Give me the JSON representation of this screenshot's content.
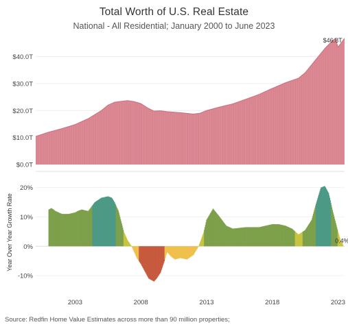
{
  "chart_data": [
    {
      "type": "area",
      "title": "Total Worth of U.S. Real Estate",
      "subtitle": "National - All Residential; January 2000 to June 2023",
      "xlabel": "",
      "ylabel": "",
      "x_range": [
        2000.0,
        2023.5
      ],
      "ylim": [
        0,
        47
      ],
      "y_ticks": [
        0,
        10,
        20,
        30,
        40
      ],
      "y_tick_labels": [
        "$0.0T",
        "$10.0T",
        "$20.0T",
        "$30.0T",
        "$40.0T"
      ],
      "color": "#de8c97",
      "series": [
        {
          "x": [
            2000.0,
            2001.0,
            2002.0,
            2003.0,
            2004.0,
            2005.0,
            2005.5,
            2006.0,
            2006.5,
            2007.0,
            2007.5,
            2008.0,
            2008.5,
            2009.0,
            2009.5,
            2010.0,
            2011.0,
            2012.0,
            2012.5,
            2013.0,
            2014.0,
            2015.0,
            2016.0,
            2017.0,
            2018.0,
            2019.0,
            2020.0,
            2020.5,
            2021.0,
            2021.5,
            2022.0,
            2022.5,
            2022.8,
            2023.0,
            2023.5
          ],
          "values": [
            10.4,
            12.0,
            13.3,
            14.8,
            17.0,
            20.0,
            22.0,
            23.1,
            23.4,
            23.7,
            23.3,
            22.6,
            21.0,
            19.8,
            19.9,
            19.6,
            19.2,
            18.7,
            19.0,
            20.0,
            21.3,
            22.5,
            24.2,
            26.0,
            28.2,
            30.3,
            32.0,
            34.0,
            37.0,
            40.0,
            43.0,
            45.5,
            46.8,
            43.5,
            46.8
          ]
        }
      ],
      "annotations": [
        {
          "x": 2022.8,
          "label": "$46.8T"
        }
      ]
    },
    {
      "type": "area",
      "title": "",
      "xlabel": "",
      "ylabel": "Year Over Year Growth Rate",
      "x_range": [
        2000.0,
        2023.5
      ],
      "ylim": [
        -13,
        22
      ],
      "y_ticks": [
        -10,
        0,
        10,
        20
      ],
      "y_tick_labels": [
        "-10%",
        "0%",
        "10%",
        "20%"
      ],
      "x_ticks": [
        2003,
        2008,
        2013,
        2018,
        2023
      ],
      "x_tick_labels": [
        "2003",
        "2008",
        "2013",
        "2018",
        "2023"
      ],
      "colors": {
        "high": "#4c9a86",
        "mid": "#7da04b",
        "low": "#c8c43f",
        "neg_small": "#f0c04d",
        "neg_large": "#c75a3e"
      },
      "series": [
        {
          "x": [
            2001.0,
            2001.2,
            2001.5,
            2002.0,
            2002.5,
            2003.0,
            2003.2,
            2003.5,
            2004.0,
            2004.5,
            2005.0,
            2005.5,
            2005.8,
            2006.0,
            2006.3,
            2006.7,
            2007.0,
            2007.3,
            2007.7,
            2008.0,
            2008.3,
            2008.6,
            2009.0,
            2009.2,
            2009.5,
            2009.8,
            2010.0,
            2010.3,
            2010.6,
            2011.0,
            2011.5,
            2012.0,
            2012.4,
            2012.8,
            2013.0,
            2013.5,
            2014.0,
            2014.5,
            2015.0,
            2016.0,
            2017.0,
            2017.5,
            2018.0,
            2018.5,
            2019.0,
            2019.5,
            2020.0,
            2020.5,
            2021.0,
            2021.3,
            2021.7,
            2022.0,
            2022.3,
            2022.6,
            2023.0,
            2023.2,
            2023.4
          ],
          "values": [
            12.5,
            13.0,
            12.0,
            11.0,
            11.0,
            11.5,
            12.0,
            12.5,
            12.0,
            15.0,
            16.5,
            17.0,
            16.5,
            15.0,
            12.0,
            5.0,
            2.0,
            0.0,
            -4.0,
            -6.0,
            -8.5,
            -11.0,
            -12.0,
            -11.0,
            -9.0,
            -5.0,
            -2.0,
            -3.5,
            -4.5,
            -4.0,
            -4.5,
            -3.0,
            0.0,
            5.0,
            9.0,
            12.8,
            10.0,
            7.0,
            6.0,
            6.5,
            6.5,
            7.0,
            7.5,
            7.5,
            7.0,
            6.0,
            4.0,
            5.5,
            9.0,
            14.0,
            20.0,
            20.5,
            18.0,
            12.0,
            5.0,
            2.0,
            0.4
          ]
        }
      ],
      "annotations": [
        {
          "x": 2023.4,
          "label": "0.4%"
        }
      ]
    }
  ],
  "source": "Source: Redfin Home Value Estimates across more than 90 million properties;"
}
